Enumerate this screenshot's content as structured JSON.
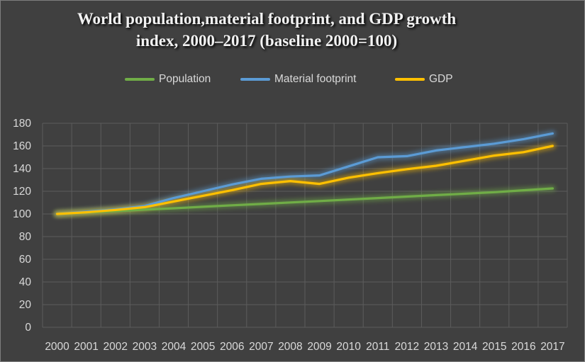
{
  "chart_data": {
    "type": "line",
    "title_lines": [
      "World population,material  footprint,  and GDP growth",
      "index, 2000–2017 (baseline 2000=100)"
    ],
    "categories": [
      "2000",
      "2001",
      "2002",
      "2003",
      "2004",
      "2005",
      "2006",
      "2007",
      "2008",
      "2009",
      "2010",
      "2011",
      "2012",
      "2013",
      "2014",
      "2015",
      "2016",
      "2017"
    ],
    "series": [
      {
        "name": "Population",
        "color": "#70ad47",
        "values": [
          100,
          101.3,
          102.5,
          103.8,
          105.0,
          106.3,
          107.6,
          108.8,
          110.1,
          111.4,
          112.7,
          114.0,
          115.3,
          116.6,
          117.9,
          119.2,
          120.9,
          122.5
        ]
      },
      {
        "name": "Material footprint",
        "color": "#5b9bd5",
        "values": [
          100,
          102,
          104,
          107,
          114,
          120,
          126,
          131,
          133,
          134,
          142,
          150,
          151,
          156,
          159,
          162,
          166,
          171
        ]
      },
      {
        "name": "GDP",
        "color": "#ffc000",
        "values": [
          100,
          101.5,
          103.5,
          106,
          111,
          116,
          121,
          126.5,
          129,
          126.5,
          132,
          136,
          139.5,
          142.5,
          147,
          151.5,
          154.5,
          160
        ]
      }
    ],
    "y_ticks": [
      "0",
      "20",
      "40",
      "60",
      "80",
      "100",
      "120",
      "140",
      "160",
      "180"
    ],
    "ylim": [
      0,
      180
    ],
    "grid": true,
    "legend_position": "top"
  }
}
